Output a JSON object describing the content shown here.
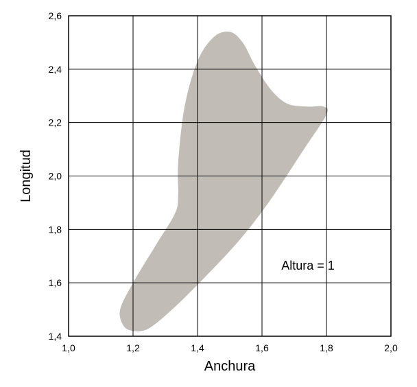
{
  "chart_data": {
    "type": "area",
    "xlabel": "Anchura",
    "ylabel": "Longitud",
    "xlim": [
      1.0,
      2.0
    ],
    "ylim": [
      1.4,
      2.6
    ],
    "x_ticks": [
      1.0,
      1.2,
      1.4,
      1.6,
      1.8,
      2.0
    ],
    "y_ticks": [
      1.4,
      1.6,
      1.8,
      2.0,
      2.2,
      2.4,
      2.6
    ],
    "x_tick_labels": [
      "1,0",
      "1,2",
      "1,4",
      "1,6",
      "1,8",
      "2,0"
    ],
    "y_tick_labels": [
      "1,4",
      "1,6",
      "1,8",
      "2,0",
      "2,2",
      "2,4",
      "2,6"
    ],
    "grid": true,
    "region": {
      "color": "#c1bcb6",
      "boundary": [
        {
          "x": 1.2,
          "y": 1.42
        },
        {
          "x": 1.17,
          "y": 1.44
        },
        {
          "x": 1.16,
          "y": 1.5
        },
        {
          "x": 1.2,
          "y": 1.6
        },
        {
          "x": 1.27,
          "y": 1.74
        },
        {
          "x": 1.33,
          "y": 1.86
        },
        {
          "x": 1.34,
          "y": 1.93
        },
        {
          "x": 1.34,
          "y": 2.05
        },
        {
          "x": 1.36,
          "y": 2.26
        },
        {
          "x": 1.4,
          "y": 2.43
        },
        {
          "x": 1.45,
          "y": 2.52
        },
        {
          "x": 1.5,
          "y": 2.54
        },
        {
          "x": 1.54,
          "y": 2.5
        },
        {
          "x": 1.58,
          "y": 2.41
        },
        {
          "x": 1.63,
          "y": 2.32
        },
        {
          "x": 1.68,
          "y": 2.27
        },
        {
          "x": 1.74,
          "y": 2.26
        },
        {
          "x": 1.79,
          "y": 2.26
        },
        {
          "x": 1.8,
          "y": 2.23
        },
        {
          "x": 1.73,
          "y": 2.1
        },
        {
          "x": 1.62,
          "y": 1.9
        },
        {
          "x": 1.53,
          "y": 1.76
        },
        {
          "x": 1.43,
          "y": 1.63
        },
        {
          "x": 1.33,
          "y": 1.51
        },
        {
          "x": 1.25,
          "y": 1.43
        }
      ]
    },
    "annotations": [
      {
        "text": "Altura = 1",
        "x": 1.66,
        "y": 1.665
      }
    ]
  }
}
